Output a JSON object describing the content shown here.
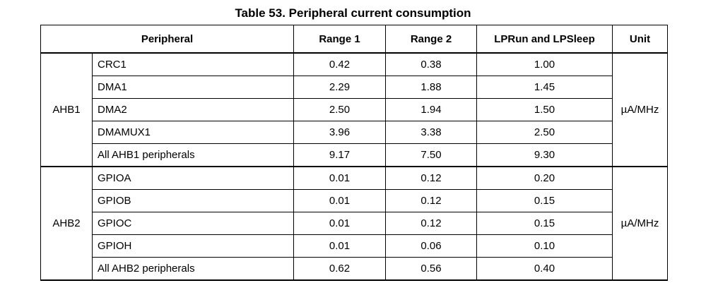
{
  "caption": "Table 53. Peripheral current consumption",
  "headers": {
    "peripheral": "Peripheral",
    "range1": "Range 1",
    "range2": "Range 2",
    "lprun": "LPRun and LPSleep",
    "unit": "Unit"
  },
  "groups": [
    {
      "name": "AHB1",
      "unit": "µA/MHz",
      "rows": [
        {
          "name": "CRC1",
          "r1": "0.42",
          "r2": "0.38",
          "lp": "1.00"
        },
        {
          "name": "DMA1",
          "r1": "2.29",
          "r2": "1.88",
          "lp": "1.45"
        },
        {
          "name": "DMA2",
          "r1": "2.50",
          "r2": "1.94",
          "lp": "1.50"
        },
        {
          "name": "DMAMUX1",
          "r1": "3.96",
          "r2": "3.38",
          "lp": "2.50"
        },
        {
          "name": "All AHB1 peripherals",
          "r1": "9.17",
          "r2": "7.50",
          "lp": "9.30"
        }
      ]
    },
    {
      "name": "AHB2",
      "unit": "µA/MHz",
      "rows": [
        {
          "name": "GPIOA",
          "r1": "0.01",
          "r2": "0.12",
          "lp": "0.20"
        },
        {
          "name": "GPIOB",
          "r1": "0.01",
          "r2": "0.12",
          "lp": "0.15"
        },
        {
          "name": "GPIOC",
          "r1": "0.01",
          "r2": "0.12",
          "lp": "0.15"
        },
        {
          "name": "GPIOH",
          "r1": "0.01",
          "r2": "0.06",
          "lp": "0.10"
        },
        {
          "name": "All AHB2 peripherals",
          "r1": "0.62",
          "r2": "0.56",
          "lp": "0.40"
        }
      ]
    }
  ]
}
